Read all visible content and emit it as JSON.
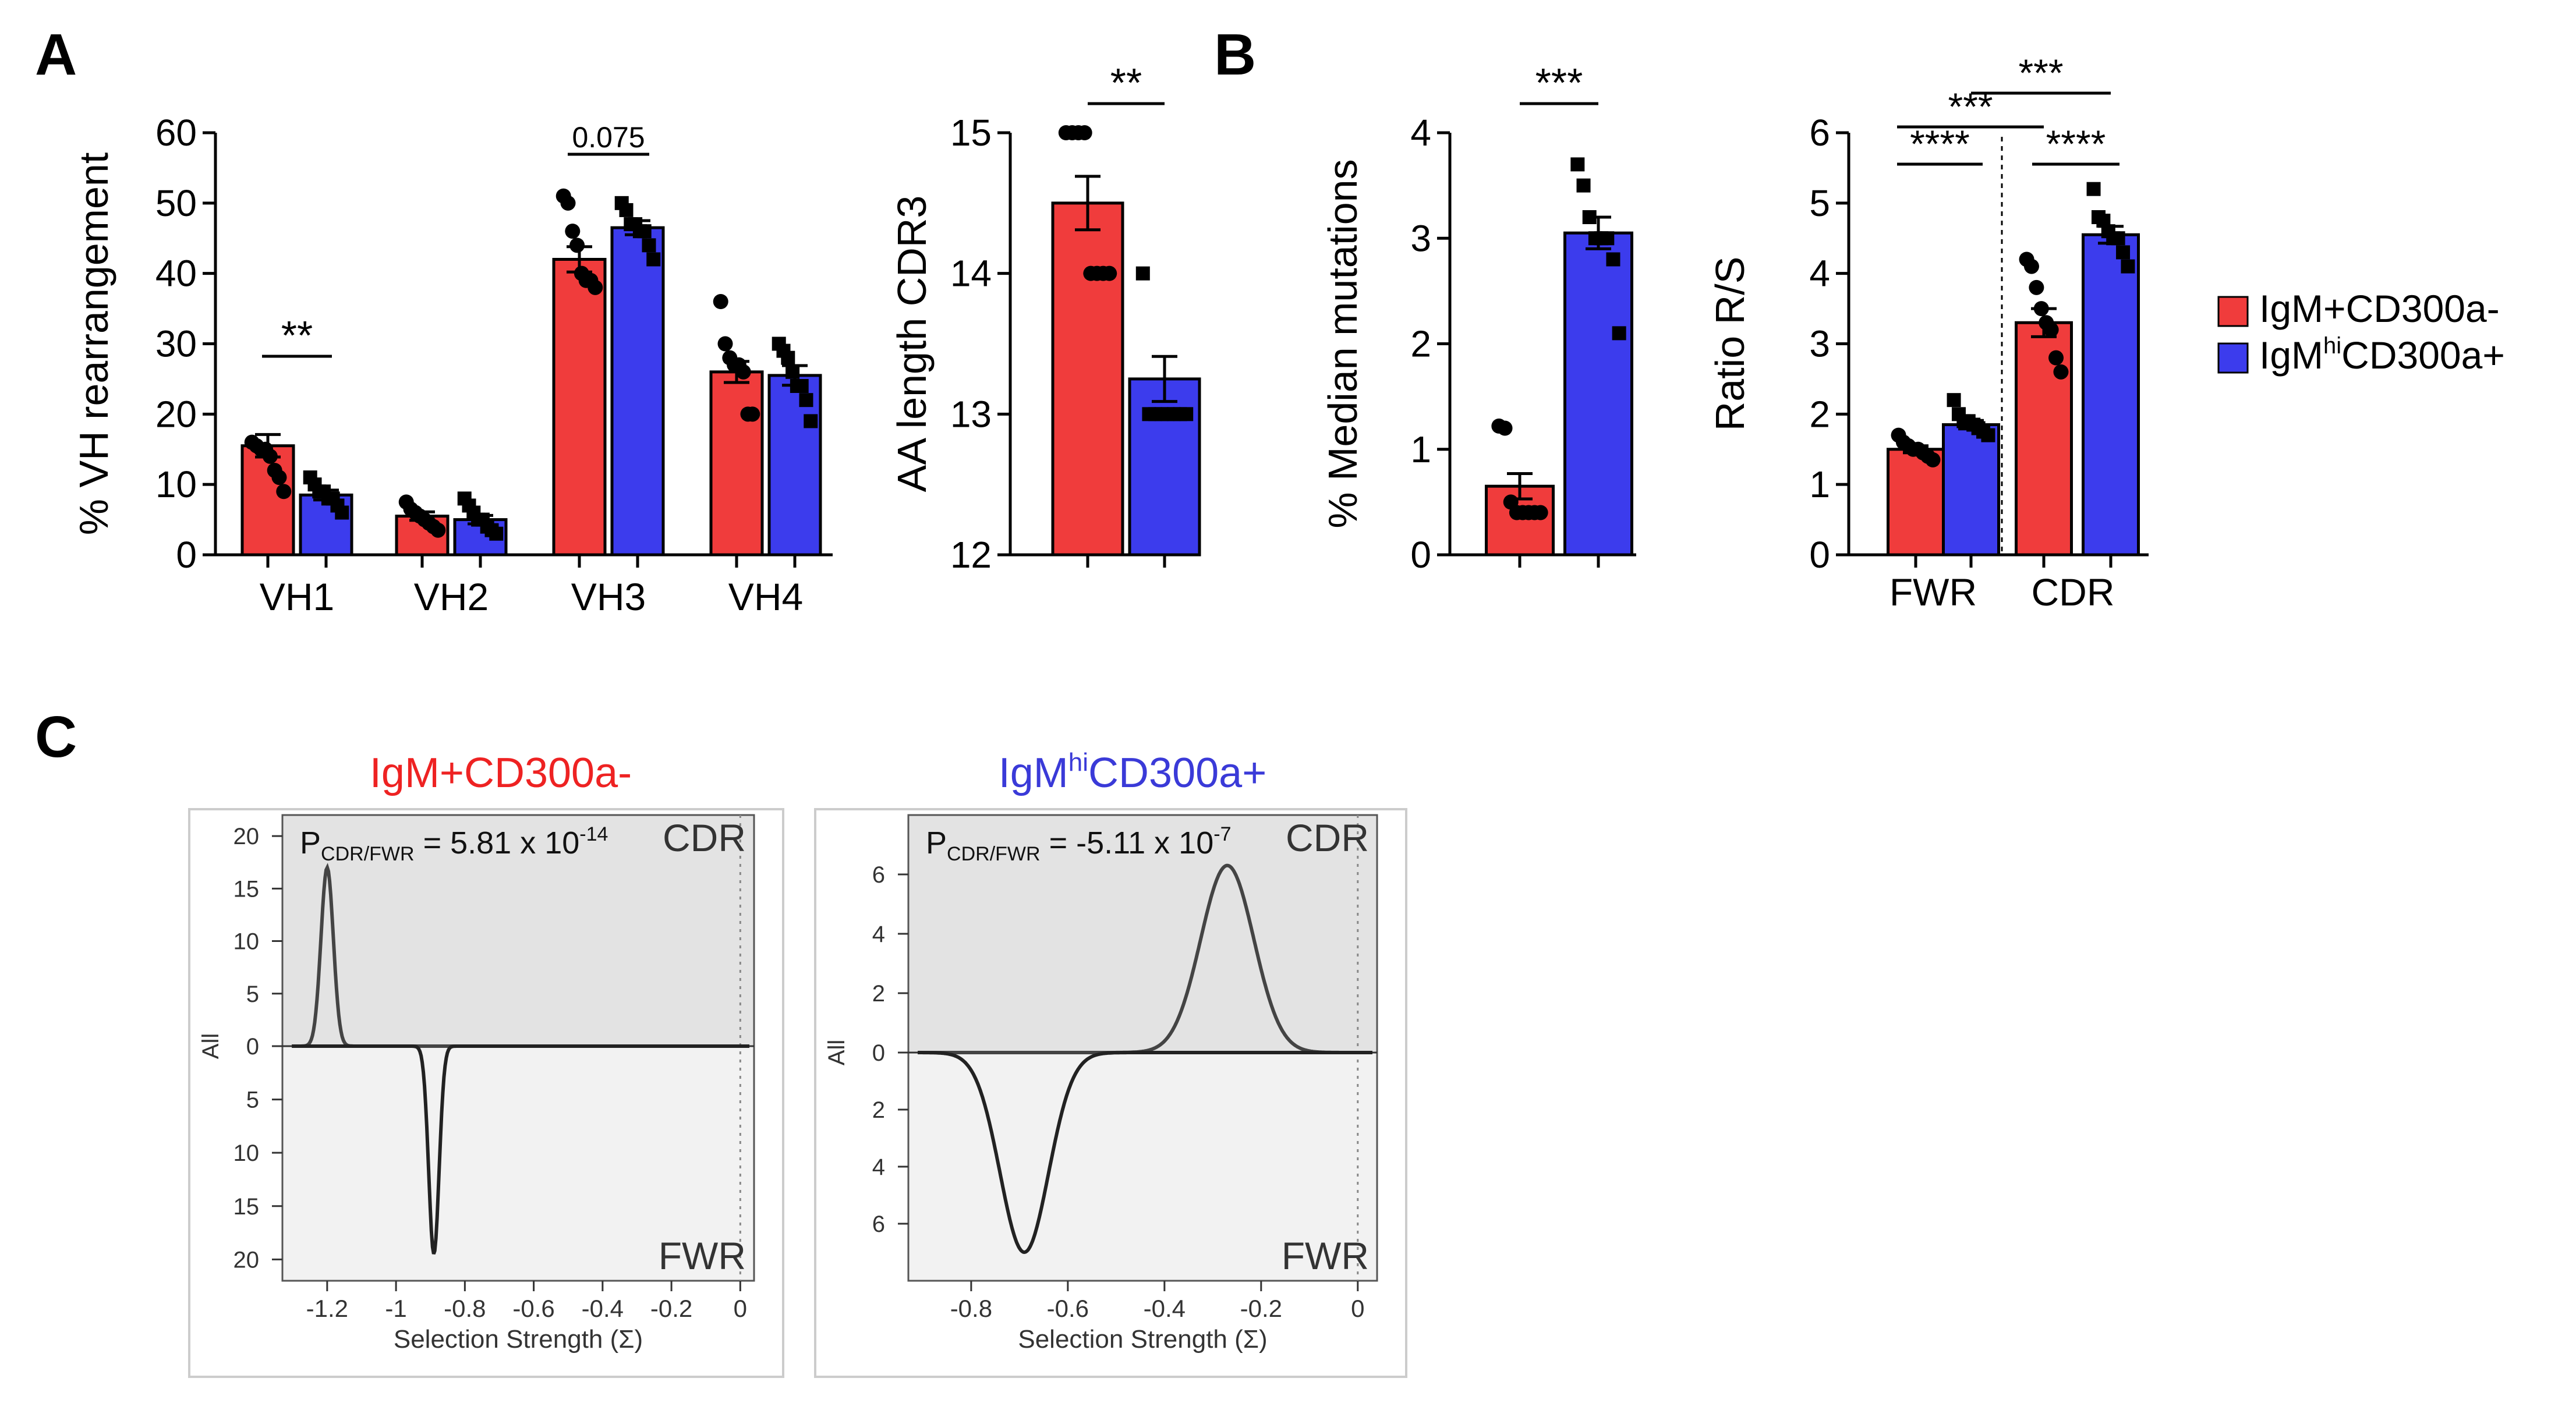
{
  "panel_labels": {
    "a": "A",
    "b": "B",
    "c": "C"
  },
  "colors": {
    "red": "#f03c3c",
    "blue": "#3c3ced",
    "red_text": "#ee2222",
    "blue_text": "#3a3ad8",
    "axis": "#000000"
  },
  "legend": {
    "items": [
      {
        "label": "IgM+CD300a-",
        "color": "#f03c3c"
      },
      {
        "label_pre": "IgM",
        "label_sup": "hi",
        "label_post": "CD300a+",
        "color": "#3c3ced"
      }
    ]
  },
  "chart_data": [
    {
      "id": "vh",
      "type": "bar",
      "ylabel": "% VH rearrangement",
      "ylim": [
        0,
        60
      ],
      "yticks": [
        "0",
        "10",
        "20",
        "30",
        "40",
        "50",
        "60"
      ],
      "categories": [
        "VH1",
        "VH2",
        "VH3",
        "VH4"
      ],
      "series": [
        {
          "name": "IgM+CD300a-",
          "values": [
            15.5,
            5.5,
            42,
            26
          ],
          "sem": [
            1.6,
            0.6,
            1.8,
            1.5
          ],
          "points": [
            [
              16,
              15.5,
              15,
              15,
              14,
              12,
              11,
              9
            ],
            [
              7.5,
              6.5,
              6,
              5.5,
              5,
              4.5,
              4,
              3.5
            ],
            [
              51,
              50,
              46,
              44,
              40,
              39,
              39,
              38
            ],
            [
              36,
              30,
              28,
              27,
              27,
              26,
              20,
              20
            ]
          ]
        },
        {
          "name": "IgMhiCD300a+",
          "values": [
            8.5,
            5,
            46.5,
            25.5
          ],
          "sem": [
            0.7,
            0.6,
            1.0,
            1.4
          ],
          "points": [
            [
              11,
              10,
              9,
              9,
              8,
              8,
              7,
              6
            ],
            [
              8,
              7,
              6,
              5,
              5,
              4,
              3.5,
              3
            ],
            [
              50,
              49,
              47,
              47,
              46,
              46,
              44,
              42
            ],
            [
              30,
              29,
              28,
              26,
              24,
              24,
              22,
              19
            ]
          ]
        }
      ],
      "annotations": [
        {
          "text": "**",
          "category": 0
        },
        {
          "text": "0.075",
          "category": 2
        }
      ]
    },
    {
      "id": "cdr3",
      "type": "bar",
      "ylabel": "AA length CDR3",
      "ylim": [
        12,
        15
      ],
      "yticks": [
        "12",
        "13",
        "14",
        "15"
      ],
      "categories": [
        "IgM+CD300a-",
        "IgMhiCD300a+"
      ],
      "series": [
        {
          "name": "all",
          "values": [
            14.5,
            13.25
          ],
          "sem": [
            0.19,
            0.16
          ]
        }
      ],
      "points": [
        [
          15,
          15,
          15,
          15,
          14,
          14,
          14,
          14
        ],
        [
          14,
          13,
          13,
          13,
          13,
          13,
          13,
          13
        ]
      ],
      "annotations": [
        {
          "text": "**"
        }
      ]
    },
    {
      "id": "mut",
      "type": "bar",
      "ylabel": "% Median mutations",
      "ylim": [
        0,
        4
      ],
      "yticks": [
        "0",
        "1",
        "2",
        "3",
        "4"
      ],
      "categories": [
        "IgM+CD300a-",
        "IgMhiCD300a+"
      ],
      "series": [
        {
          "name": "all",
          "values": [
            0.65,
            3.05
          ],
          "sem": [
            0.12,
            0.15
          ]
        }
      ],
      "points": [
        [
          1.22,
          1.2,
          0.5,
          0.4,
          0.4,
          0.4,
          0.4,
          0.4
        ],
        [
          3.7,
          3.5,
          3.2,
          3.0,
          3.0,
          3.0,
          2.8,
          2.1
        ]
      ],
      "annotations": [
        {
          "text": "***"
        }
      ]
    },
    {
      "id": "rs",
      "type": "bar",
      "ylabel": "Ratio R/S",
      "ylim": [
        0,
        6
      ],
      "yticks": [
        "0",
        "1",
        "2",
        "3",
        "4",
        "5",
        "6"
      ],
      "categories": [
        "FWR",
        "CDR"
      ],
      "series": [
        {
          "name": "IgM+CD300a-",
          "values": [
            1.5,
            3.3
          ],
          "sem": [
            0.05,
            0.2
          ],
          "points": [
            [
              1.7,
              1.6,
              1.55,
              1.5,
              1.5,
              1.45,
              1.4,
              1.35
            ],
            [
              4.2,
              4.1,
              3.8,
              3.5,
              3.3,
              3.2,
              2.8,
              2.6
            ]
          ]
        },
        {
          "name": "IgMhiCD300a+",
          "values": [
            1.85,
            4.55
          ],
          "sem": [
            0.06,
            0.12
          ],
          "points": [
            [
              2.2,
              2.0,
              1.9,
              1.9,
              1.85,
              1.8,
              1.75,
              1.7
            ],
            [
              5.2,
              4.8,
              4.75,
              4.6,
              4.5,
              4.5,
              4.3,
              4.1
            ]
          ]
        }
      ],
      "annotations": [
        {
          "text": "****"
        },
        {
          "text": "****"
        },
        {
          "text": "***"
        },
        {
          "text": "***"
        }
      ]
    },
    {
      "id": "sel_left",
      "type": "line",
      "title": "IgM+CD300a-",
      "pvalue": {
        "pre": "P",
        "sub": "CDR/FWR",
        "mid": " = 5.81 x 10",
        "sup": "-14"
      },
      "region_top": "CDR",
      "region_bottom": "FWR",
      "ylabel": "All",
      "xlabel": "Selection Strength (Σ)",
      "xlim": [
        -1.33,
        0.04
      ],
      "ylim": [
        -22,
        22
      ],
      "xticks": [
        "-1.2",
        "-1",
        "-0.8",
        "-0.6",
        "-0.4",
        "-0.2",
        "0"
      ],
      "yticks_top": [
        "20",
        "15",
        "10",
        "5",
        "0"
      ],
      "yticks_bottom": [
        "5",
        "10",
        "15",
        "20"
      ],
      "cdr_peak": {
        "mean": -1.2,
        "sd": 0.018,
        "height": 17
      },
      "fwr_peak": {
        "mean": -0.89,
        "sd": 0.015,
        "height": 19.5
      }
    },
    {
      "id": "sel_right",
      "type": "line",
      "title_pre": "IgM",
      "title_sup": "hi",
      "title_post": "CD300a+",
      "pvalue": {
        "pre": "P",
        "sub": "CDR/FWR",
        "mid": " = -5.11 x 10",
        "sup": "-7"
      },
      "region_top": "CDR",
      "region_bottom": "FWR",
      "ylabel": "All",
      "xlabel": "Selection Strength (Σ)",
      "xlim": [
        -0.93,
        0.04
      ],
      "ylim": [
        -8,
        8
      ],
      "xticks": [
        "-0.8",
        "-0.6",
        "-0.4",
        "-0.2",
        "0"
      ],
      "yticks_top": [
        "6",
        "4",
        "2",
        "0"
      ],
      "yticks_bottom": [
        "2",
        "4",
        "6"
      ],
      "cdr_peak": {
        "mean": -0.27,
        "sd": 0.055,
        "height": 6.3
      },
      "fwr_peak": {
        "mean": -0.69,
        "sd": 0.05,
        "height": 7.0
      }
    }
  ]
}
